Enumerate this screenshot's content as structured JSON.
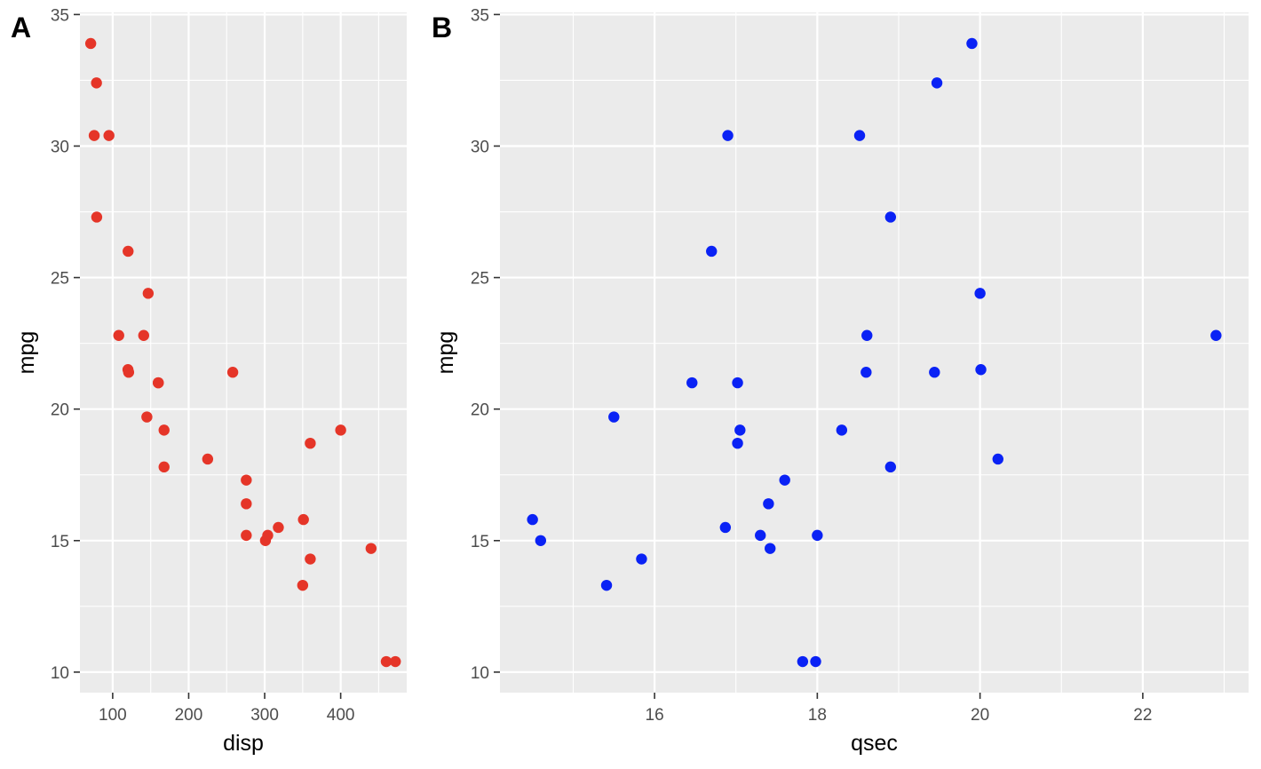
{
  "chart_data": [
    {
      "type": "scatter",
      "panel_label": "A",
      "xlabel": "disp",
      "ylabel": "mpg",
      "xlim": [
        56.9,
        486.9
      ],
      "ylim": [
        9.22,
        35.08
      ],
      "x_ticks": [
        100,
        200,
        300,
        400
      ],
      "y_ticks": [
        10,
        15,
        20,
        25,
        30,
        35
      ],
      "grid": true,
      "point_color": "#E53528",
      "points": [
        [
          160,
          21.0
        ],
        [
          160,
          21.0
        ],
        [
          108,
          22.8
        ],
        [
          258,
          21.4
        ],
        [
          360,
          18.7
        ],
        [
          225,
          18.1
        ],
        [
          360,
          14.3
        ],
        [
          146.7,
          24.4
        ],
        [
          140.8,
          22.8
        ],
        [
          167.6,
          19.2
        ],
        [
          167.6,
          17.8
        ],
        [
          275.8,
          16.4
        ],
        [
          275.8,
          17.3
        ],
        [
          275.8,
          15.2
        ],
        [
          472,
          10.4
        ],
        [
          460,
          10.4
        ],
        [
          440,
          14.7
        ],
        [
          78.7,
          32.4
        ],
        [
          75.7,
          30.4
        ],
        [
          71.1,
          33.9
        ],
        [
          120.1,
          21.5
        ],
        [
          318,
          15.5
        ],
        [
          304,
          15.2
        ],
        [
          350,
          13.3
        ],
        [
          400,
          19.2
        ],
        [
          79,
          27.3
        ],
        [
          120.3,
          26.0
        ],
        [
          95.1,
          30.4
        ],
        [
          351,
          15.8
        ],
        [
          145,
          19.7
        ],
        [
          301,
          15.0
        ],
        [
          121,
          21.4
        ]
      ]
    },
    {
      "type": "scatter",
      "panel_label": "B",
      "xlabel": "qsec",
      "ylabel": "mpg",
      "xlim": [
        14.1,
        23.3
      ],
      "ylim": [
        9.22,
        35.08
      ],
      "x_ticks": [
        16,
        18,
        20,
        22
      ],
      "y_ticks": [
        10,
        15,
        20,
        25,
        30,
        35
      ],
      "grid": true,
      "point_color": "#0A22F5",
      "points": [
        [
          16.46,
          21.0
        ],
        [
          17.02,
          21.0
        ],
        [
          18.61,
          22.8
        ],
        [
          19.44,
          21.4
        ],
        [
          17.02,
          18.7
        ],
        [
          20.22,
          18.1
        ],
        [
          15.84,
          14.3
        ],
        [
          20.0,
          24.4
        ],
        [
          22.9,
          22.8
        ],
        [
          18.3,
          19.2
        ],
        [
          18.9,
          17.8
        ],
        [
          17.4,
          16.4
        ],
        [
          17.6,
          17.3
        ],
        [
          18.0,
          15.2
        ],
        [
          17.98,
          10.4
        ],
        [
          17.82,
          10.4
        ],
        [
          17.42,
          14.7
        ],
        [
          19.47,
          32.4
        ],
        [
          18.52,
          30.4
        ],
        [
          19.9,
          33.9
        ],
        [
          20.01,
          21.5
        ],
        [
          16.87,
          15.5
        ],
        [
          17.3,
          15.2
        ],
        [
          15.41,
          13.3
        ],
        [
          17.05,
          19.2
        ],
        [
          18.9,
          27.3
        ],
        [
          16.7,
          26.0
        ],
        [
          16.9,
          30.4
        ],
        [
          14.5,
          15.8
        ],
        [
          15.5,
          19.7
        ],
        [
          14.6,
          15.0
        ],
        [
          18.6,
          21.4
        ]
      ]
    }
  ]
}
